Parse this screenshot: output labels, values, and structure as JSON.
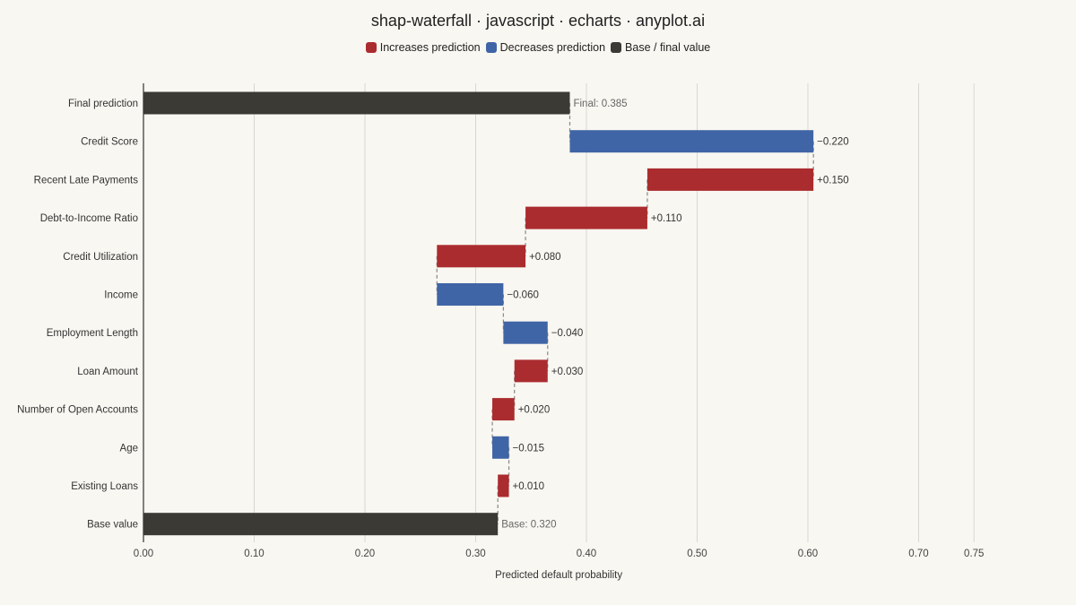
{
  "title": "shap-waterfall · javascript · echarts · anyplot.ai",
  "legend": [
    {
      "label": "Increases prediction",
      "color": "#aa2c2f"
    },
    {
      "label": "Decreases prediction",
      "color": "#4065a6"
    },
    {
      "label": "Base / final value",
      "color": "#3b3a35"
    }
  ],
  "chart_data": {
    "type": "bar",
    "orientation": "horizontal-waterfall",
    "xlabel": "Predicted default probability",
    "ylabel": "",
    "xlim": [
      0,
      0.75
    ],
    "xticks": [
      0,
      0.1,
      0.2,
      0.3,
      0.4,
      0.5,
      0.6,
      0.7,
      0.75
    ],
    "xtick_labels": [
      "0.00",
      "0.10",
      "0.20",
      "0.30",
      "0.40",
      "0.50",
      "0.60",
      "0.70",
      "0.75"
    ],
    "grid": true,
    "base_value": 0.32,
    "final_value": 0.385,
    "rows": [
      {
        "label": "Final prediction",
        "kind": "total",
        "start": 0,
        "end": 0.385,
        "value_label": "Final: 0.385"
      },
      {
        "label": "Credit Score",
        "kind": "decrease",
        "start": 0.605,
        "end": 0.385,
        "value_label": "−0.220"
      },
      {
        "label": "Recent Late Payments",
        "kind": "increase",
        "start": 0.455,
        "end": 0.605,
        "value_label": "+0.150"
      },
      {
        "label": "Debt-to-Income Ratio",
        "kind": "increase",
        "start": 0.345,
        "end": 0.455,
        "value_label": "+0.110"
      },
      {
        "label": "Credit Utilization",
        "kind": "increase",
        "start": 0.265,
        "end": 0.345,
        "value_label": "+0.080"
      },
      {
        "label": "Income",
        "kind": "decrease",
        "start": 0.325,
        "end": 0.265,
        "value_label": "−0.060"
      },
      {
        "label": "Employment Length",
        "kind": "decrease",
        "start": 0.365,
        "end": 0.325,
        "value_label": "−0.040"
      },
      {
        "label": "Loan Amount",
        "kind": "increase",
        "start": 0.335,
        "end": 0.365,
        "value_label": "+0.030"
      },
      {
        "label": "Number of Open Accounts",
        "kind": "increase",
        "start": 0.315,
        "end": 0.335,
        "value_label": "+0.020"
      },
      {
        "label": "Age",
        "kind": "decrease",
        "start": 0.33,
        "end": 0.315,
        "value_label": "−0.015"
      },
      {
        "label": "Existing Loans",
        "kind": "increase",
        "start": 0.32,
        "end": 0.33,
        "value_label": "+0.010"
      },
      {
        "label": "Base value",
        "kind": "total",
        "start": 0,
        "end": 0.32,
        "value_label": "Base: 0.320"
      }
    ],
    "colors": {
      "increase": "#aa2c2f",
      "decrease": "#4065a6",
      "total": "#3b3a35"
    }
  }
}
